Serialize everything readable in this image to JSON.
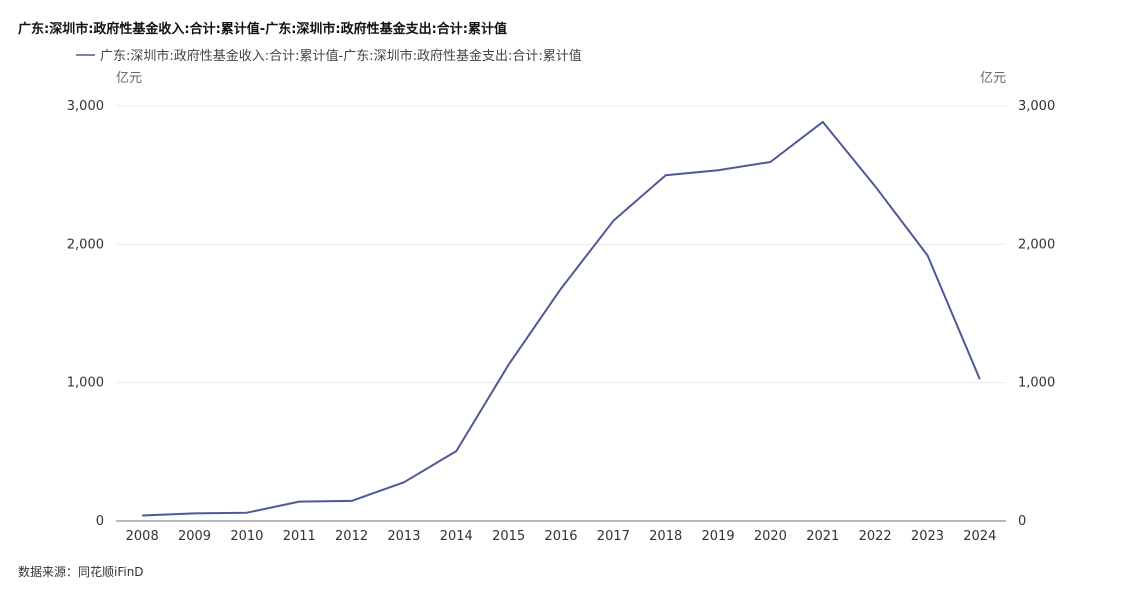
{
  "chart_data": {
    "type": "line",
    "title": "广东:深圳市:政府性基金收入:合计:累计值-广东:深圳市:政府性基金支出:合计:累计值",
    "legend": "广东:深圳市:政府性基金收入:合计:累计值-广东:深圳市:政府性基金支出:合计:累计值",
    "legend_position": "top-left",
    "y_unit_left": "亿元",
    "y_unit_right": "亿元",
    "ylim": [
      0,
      3000
    ],
    "yticks": [
      0,
      1000,
      2000,
      3000
    ],
    "ytick_labels": [
      "0",
      "1,000",
      "2,000",
      "3,000"
    ],
    "grid": true,
    "color": "#4e5a96",
    "x": [
      "2008",
      "2009",
      "2010",
      "2011",
      "2012",
      "2013",
      "2014",
      "2015",
      "2016",
      "2017",
      "2018",
      "2019",
      "2020",
      "2021",
      "2022",
      "2023",
      "2024"
    ],
    "values": [
      40,
      55,
      60,
      140,
      145,
      280,
      505,
      1130,
      1680,
      2170,
      2500,
      2535,
      2595,
      2885,
      2420,
      1920,
      1025
    ]
  },
  "source": "数据来源：同花顺iFinD"
}
